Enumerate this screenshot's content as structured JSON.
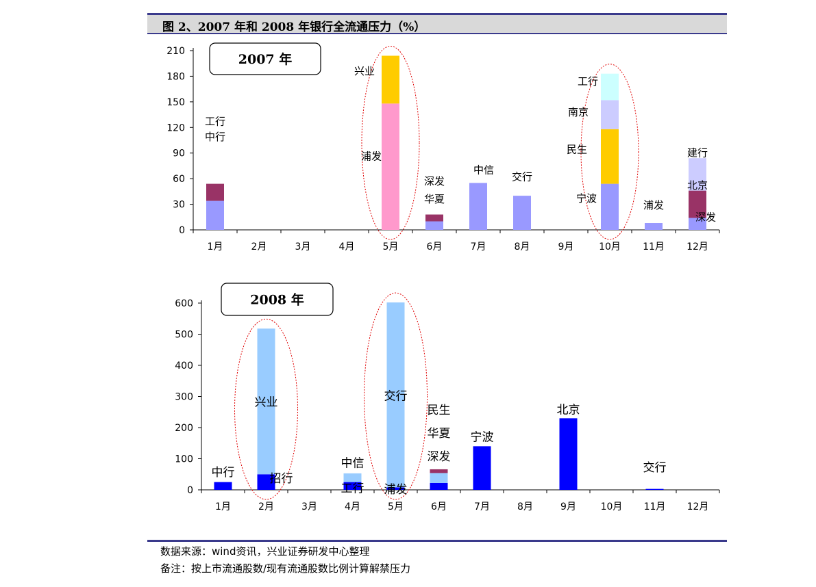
{
  "title": "图 2、2007 年和 2008 年银行全流通压力（%）",
  "footnotes": {
    "source": "数据来源：wind资讯，兴业证券研发中心整理",
    "remark": "备注：按上市流通股数/现有流通股数比例计算解禁压力"
  },
  "chart_data": [
    {
      "type": "bar",
      "stacked": true,
      "title": "2007 年",
      "categories": [
        "1月",
        "2月",
        "3月",
        "4月",
        "5月",
        "6月",
        "7月",
        "8月",
        "9月",
        "10月",
        "11月",
        "12月"
      ],
      "ylim": [
        0,
        210
      ],
      "yticks": [
        0,
        30,
        60,
        90,
        120,
        150,
        180,
        210
      ],
      "segments": [
        [
          {
            "v": 34,
            "color": "#9999ff"
          },
          {
            "v": 20,
            "color": "#993366"
          }
        ],
        [],
        [],
        [],
        [
          {
            "v": 148,
            "color": "#ff99cc"
          },
          {
            "v": 56,
            "color": "#ffcc00"
          }
        ],
        [
          {
            "v": 10,
            "color": "#9999ff"
          },
          {
            "v": 8,
            "color": "#993366"
          }
        ],
        [
          {
            "v": 55,
            "color": "#9999ff"
          }
        ],
        [
          {
            "v": 40,
            "color": "#9999ff"
          }
        ],
        [],
        [
          {
            "v": 54,
            "color": "#9999ff"
          },
          {
            "v": 64,
            "color": "#ffcc00"
          },
          {
            "v": 34,
            "color": "#ccccff"
          },
          {
            "v": 31,
            "color": "#ccffff"
          }
        ],
        [
          {
            "v": 8,
            "color": "#9999ff"
          }
        ],
        [
          {
            "v": 14,
            "color": "#9999ff"
          },
          {
            "v": 32,
            "color": "#993366"
          },
          {
            "v": 38,
            "color": "#ccccff"
          }
        ]
      ],
      "annotations": [
        {
          "text": "工行",
          "cat": 0,
          "y": 127
        },
        {
          "text": "中行",
          "cat": 0,
          "y": 109
        },
        {
          "text": "兴业",
          "cat": 4,
          "y": 186,
          "dx": -38
        },
        {
          "text": "浦发",
          "cat": 4,
          "y": 86,
          "dx": -28
        },
        {
          "text": "深发",
          "cat": 5,
          "y": 57
        },
        {
          "text": "华夏",
          "cat": 5,
          "y": 36
        },
        {
          "text": "中信",
          "cat": 6,
          "y": 70,
          "dx": 8
        },
        {
          "text": "交行",
          "cat": 7,
          "y": 62
        },
        {
          "text": "工行",
          "cat": 9,
          "y": 174,
          "dx": -32
        },
        {
          "text": "南京",
          "cat": 9,
          "y": 138,
          "dx": -46
        },
        {
          "text": "民生",
          "cat": 9,
          "y": 94,
          "dx": -48
        },
        {
          "text": "宁波",
          "cat": 9,
          "y": 37,
          "dx": -34
        },
        {
          "text": "浦发",
          "cat": 10,
          "y": 29
        },
        {
          "text": "建行",
          "cat": 11,
          "y": 90
        },
        {
          "text": "北京",
          "cat": 11,
          "y": 52
        },
        {
          "text": "深发",
          "cat": 11,
          "y": 15,
          "dx": 12
        }
      ],
      "highlights": [
        {
          "cat": 4
        },
        {
          "cat": 9
        }
      ]
    },
    {
      "type": "bar",
      "stacked": true,
      "title": "2008 年",
      "categories": [
        "1月",
        "2月",
        "3月",
        "4月",
        "5月",
        "6月",
        "7月",
        "8月",
        "9月",
        "10月",
        "11月",
        "12月"
      ],
      "ylim": [
        0,
        600
      ],
      "yticks": [
        0,
        100,
        200,
        300,
        400,
        500,
        600
      ],
      "segments": [
        [
          {
            "v": 25,
            "color": "#0000ff"
          }
        ],
        [
          {
            "v": 50,
            "color": "#0000ff"
          },
          {
            "v": 468,
            "color": "#99ccff"
          }
        ],
        [],
        [
          {
            "v": 25,
            "color": "#0000ff"
          },
          {
            "v": 28,
            "color": "#99ccff"
          }
        ],
        [
          {
            "v": 8,
            "color": "#0000ff"
          },
          {
            "v": 594,
            "color": "#99ccff"
          }
        ],
        [
          {
            "v": 22,
            "color": "#0000ff"
          },
          {
            "v": 32,
            "color": "#99ccff"
          },
          {
            "v": 12,
            "color": "#993366"
          }
        ],
        [
          {
            "v": 140,
            "color": "#0000ff"
          }
        ],
        [],
        [
          {
            "v": 230,
            "color": "#0000ff"
          }
        ],
        [],
        [
          {
            "v": 3,
            "color": "#0000ff"
          }
        ],
        []
      ],
      "annotations": [
        {
          "text": "中行",
          "cat": 0,
          "y": 55
        },
        {
          "text": "兴业",
          "cat": 1,
          "y": 280
        },
        {
          "text": "招行",
          "cat": 1,
          "y": 35,
          "dx": 22
        },
        {
          "text": "中信",
          "cat": 3,
          "y": 85
        },
        {
          "text": "工行",
          "cat": 3,
          "y": 3
        },
        {
          "text": "交行",
          "cat": 4,
          "y": 300
        },
        {
          "text": "浦发",
          "cat": 4,
          "y": 0
        },
        {
          "text": "民生",
          "cat": 5,
          "y": 255
        },
        {
          "text": "华夏",
          "cat": 5,
          "y": 180
        },
        {
          "text": "深发",
          "cat": 5,
          "y": 105
        },
        {
          "text": "宁波",
          "cat": 6,
          "y": 168
        },
        {
          "text": "北京",
          "cat": 8,
          "y": 256
        },
        {
          "text": "交行",
          "cat": 10,
          "y": 70
        }
      ],
      "highlights": [
        {
          "cat": 1
        },
        {
          "cat": 4
        }
      ]
    }
  ]
}
